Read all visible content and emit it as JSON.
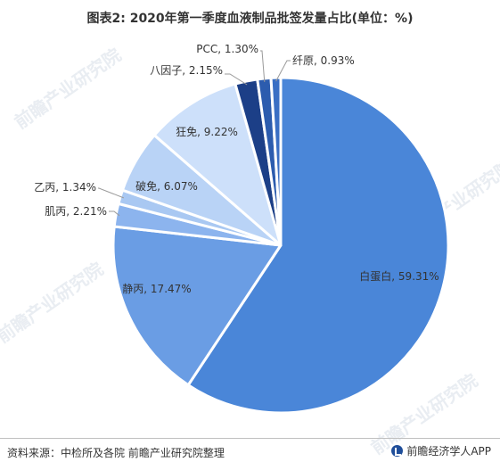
{
  "title": "图表2: 2020年第一季度血液制品批签发量占比(单位：%)",
  "chart_data": {
    "type": "pie",
    "slices": [
      {
        "name": "白蛋白",
        "value": 59.31,
        "label": "白蛋白, 59.31%",
        "color": "#4a86d8"
      },
      {
        "name": "静丙",
        "value": 17.47,
        "label": "静丙, 17.47%",
        "color": "#6a9de4"
      },
      {
        "name": "肌丙",
        "value": 2.21,
        "label": "肌丙, 2.21%",
        "color": "#8cb4ee"
      },
      {
        "name": "乙丙",
        "value": 1.34,
        "label": "乙丙, 1.34%",
        "color": "#a9c8f2"
      },
      {
        "name": "破免",
        "value": 6.07,
        "label": "破免, 6.07%",
        "color": "#b9d3f6"
      },
      {
        "name": "狂免",
        "value": 9.22,
        "label": "狂免, 9.22%",
        "color": "#cde0fa"
      },
      {
        "name": "八因子",
        "value": 2.15,
        "label": "八因子, 2.15%",
        "color": "#1c3f87"
      },
      {
        "name": "PCC",
        "value": 1.3,
        "label": "PCC, 1.30%",
        "color": "#2c5cae"
      },
      {
        "name": "纤原",
        "value": 0.93,
        "label": "纤原, 0.93%",
        "color": "#3a6fc4"
      }
    ]
  },
  "footer": {
    "source": "资料来源：中检所及各院 前瞻产业研究院整理",
    "brand": "前瞻经济学人APP"
  },
  "watermark": "前瞻产业研究院"
}
